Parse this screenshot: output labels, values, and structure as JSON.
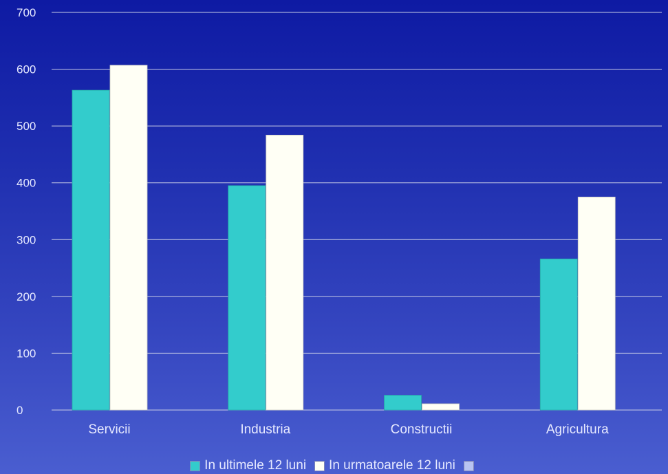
{
  "chart_data": {
    "type": "bar",
    "categories": [
      "Servicii",
      "Industria",
      "Constructii",
      "Agricultura"
    ],
    "series": [
      {
        "name": "In ultimele 12 luni",
        "color": "#33cccc",
        "values": [
          563,
          395,
          26,
          266
        ]
      },
      {
        "name": "In urmatoarele 12 luni",
        "color": "#fffff5",
        "values": [
          607,
          484,
          11,
          375
        ]
      },
      {
        "name": "",
        "color": "#b8c4f2",
        "values": [
          0,
          0,
          0,
          0
        ]
      }
    ],
    "ylim": [
      0,
      700
    ],
    "yticks": [
      "0",
      "100",
      "200",
      "300",
      "400",
      "500",
      "600",
      "700"
    ],
    "grid": true,
    "legend_position": "bottom"
  }
}
